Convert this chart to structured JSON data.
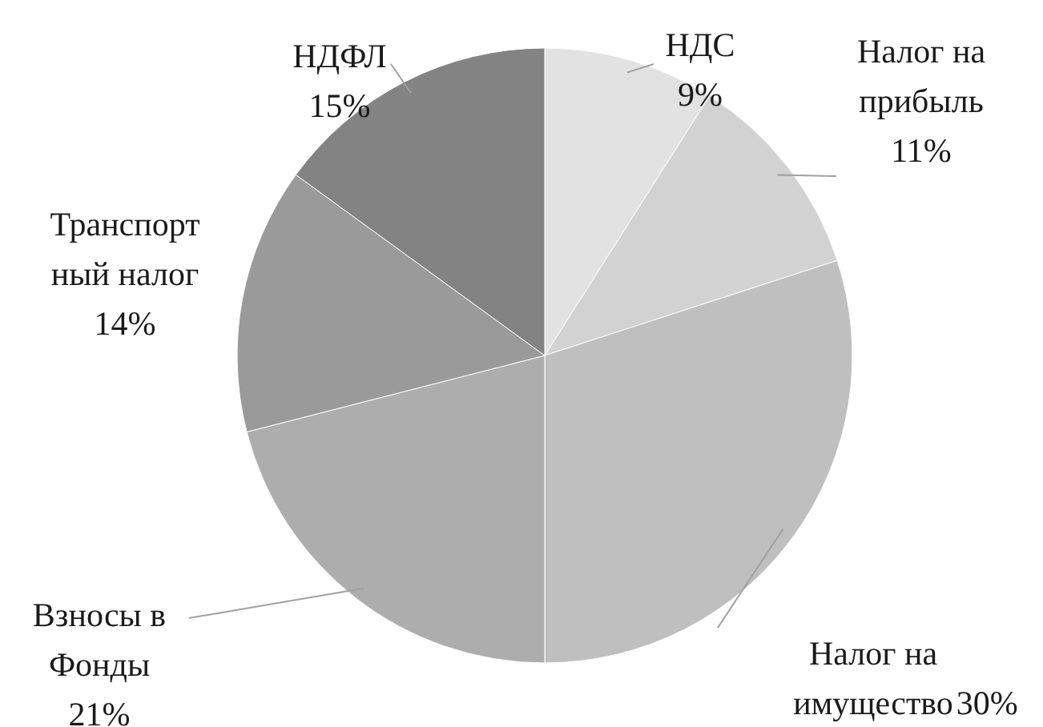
{
  "chart_data": {
    "type": "pie",
    "categories": [
      "НДС",
      "Налог на\nприбыль",
      "Налог на\nимущество",
      "Взносы в\nФонды",
      "Транспорт\nный налог",
      "НДФЛ"
    ],
    "values": [
      9,
      11,
      30,
      21,
      14,
      15
    ],
    "value_labels": [
      "9%",
      "11%",
      "30%",
      "21%",
      "14%",
      "15%"
    ],
    "colors": [
      "#e2e2e2",
      "#d2d2d2",
      "#bfbfbf",
      "#adadad",
      "#9a9a9a",
      "#838383"
    ]
  }
}
